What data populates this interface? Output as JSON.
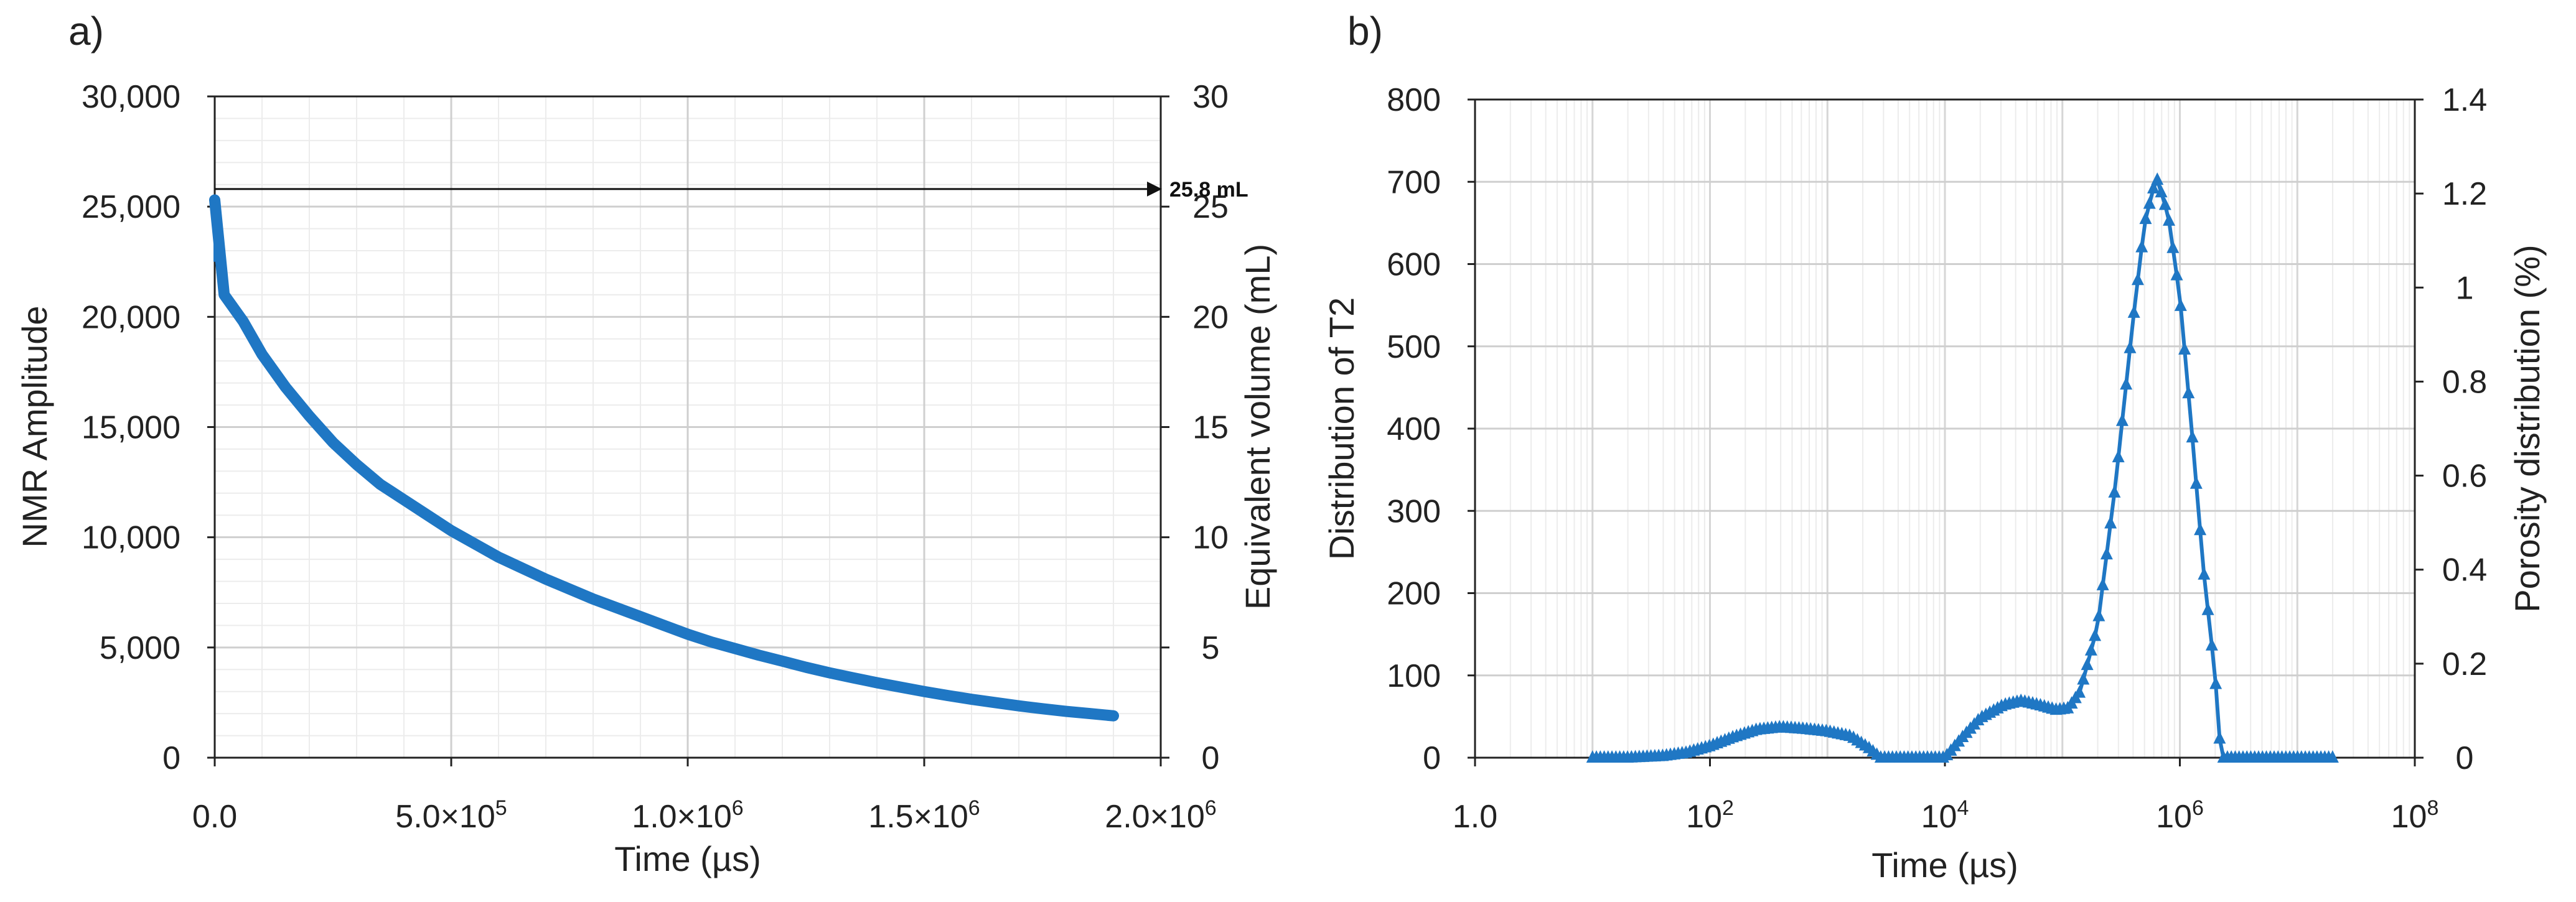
{
  "chart_data": [
    {
      "panel": "a)",
      "type": "line",
      "title": "",
      "xlabel": "Time (µs)",
      "ylabel": "NMR Amplitude",
      "y2label": "Equivalent volume (mL)",
      "xlim": [
        0,
        2000000
      ],
      "ylim": [
        0,
        30000
      ],
      "y2lim": [
        0,
        30
      ],
      "x_ticks": [
        {
          "value": 0,
          "base": "0.0",
          "exp": ""
        },
        {
          "value": 500000,
          "base": "5.0×10",
          "exp": "5"
        },
        {
          "value": 1000000,
          "base": "1.0×10",
          "exp": "6"
        },
        {
          "value": 1500000,
          "base": "1.5×10",
          "exp": "6"
        },
        {
          "value": 2000000,
          "base": "2.0×10",
          "exp": "6"
        }
      ],
      "y_ticks": [
        {
          "value": 0,
          "label": "0"
        },
        {
          "value": 5000,
          "label": "5,000"
        },
        {
          "value": 10000,
          "label": "10,000"
        },
        {
          "value": 15000,
          "label": "15,000"
        },
        {
          "value": 20000,
          "label": "20,000"
        },
        {
          "value": 25000,
          "label": "25,000"
        },
        {
          "value": 30000,
          "label": "30,000"
        }
      ],
      "y2_ticks": [
        {
          "value": 0,
          "label": "0"
        },
        {
          "value": 5,
          "label": "5"
        },
        {
          "value": 10,
          "label": "10"
        },
        {
          "value": 15,
          "label": "15"
        },
        {
          "value": 20,
          "label": "20"
        },
        {
          "value": 25,
          "label": "25"
        },
        {
          "value": 30,
          "label": "30"
        }
      ],
      "annotation": {
        "label": "25.8 mL",
        "y_value": 25800
      },
      "series": [
        {
          "name": "NMR Amplitude",
          "color": "#1f77c4",
          "points": [
            [
              0,
              25300
            ],
            [
              20000,
              21000
            ],
            [
              60000,
              19800
            ],
            [
              100000,
              18300
            ],
            [
              150000,
              16800
            ],
            [
              200000,
              15500
            ],
            [
              250000,
              14300
            ],
            [
              300000,
              13300
            ],
            [
              350000,
              12400
            ],
            [
              400000,
              11700
            ],
            [
              450000,
              11000
            ],
            [
              500000,
              10300
            ],
            [
              550000,
              9700
            ],
            [
              600000,
              9100
            ],
            [
              650000,
              8600
            ],
            [
              700000,
              8100
            ],
            [
              750000,
              7650
            ],
            [
              800000,
              7200
            ],
            [
              850000,
              6800
            ],
            [
              900000,
              6400
            ],
            [
              950000,
              6000
            ],
            [
              1000000,
              5600
            ],
            [
              1050000,
              5250
            ],
            [
              1100000,
              4950
            ],
            [
              1150000,
              4650
            ],
            [
              1200000,
              4380
            ],
            [
              1250000,
              4100
            ],
            [
              1300000,
              3850
            ],
            [
              1350000,
              3620
            ],
            [
              1400000,
              3400
            ],
            [
              1450000,
              3200
            ],
            [
              1500000,
              3000
            ],
            [
              1550000,
              2820
            ],
            [
              1600000,
              2650
            ],
            [
              1650000,
              2500
            ],
            [
              1700000,
              2350
            ],
            [
              1750000,
              2220
            ],
            [
              1800000,
              2100
            ],
            [
              1850000,
              2000
            ],
            [
              1900000,
              1900
            ]
          ]
        }
      ]
    },
    {
      "panel": "b)",
      "type": "line",
      "x_scale": "log10",
      "title": "",
      "xlabel": "Time (µs)",
      "ylabel": "Distribution of T2",
      "y2label": "Porosity distribution (%)",
      "xlim": [
        1,
        100000000
      ],
      "ylim": [
        0,
        800
      ],
      "y2lim": [
        0,
        1.4
      ],
      "x_ticks": [
        {
          "value": 1,
          "base": "1.0",
          "exp": ""
        },
        {
          "value": 100,
          "base": "10",
          "exp": "2"
        },
        {
          "value": 10000,
          "base": "10",
          "exp": "4"
        },
        {
          "value": 1000000,
          "base": "10",
          "exp": "6"
        },
        {
          "value": 100000000,
          "base": "10",
          "exp": "8"
        }
      ],
      "y_ticks": [
        {
          "value": 0,
          "label": "0"
        },
        {
          "value": 100,
          "label": "100"
        },
        {
          "value": 200,
          "label": "200"
        },
        {
          "value": 300,
          "label": "300"
        },
        {
          "value": 400,
          "label": "400"
        },
        {
          "value": 500,
          "label": "500"
        },
        {
          "value": 600,
          "label": "600"
        },
        {
          "value": 700,
          "label": "700"
        },
        {
          "value": 800,
          "label": "800"
        }
      ],
      "y2_ticks": [
        {
          "value": 0,
          "label": "0"
        },
        {
          "value": 0.2,
          "label": "0.2"
        },
        {
          "value": 0.4,
          "label": "0.4"
        },
        {
          "value": 0.6,
          "label": "0.6"
        },
        {
          "value": 0.8,
          "label": "0.8"
        },
        {
          "value": 1.0,
          "label": "1"
        },
        {
          "value": 1.2,
          "label": "1.2"
        },
        {
          "value": 1.4,
          "label": "1.4"
        }
      ],
      "series": [
        {
          "name": "Distribution of T2",
          "color": "#1f77c4",
          "marker": "triangle",
          "log10_x_range": [
            1.0,
            7.3
          ],
          "points": [
            [
              1.0,
              0
            ],
            [
              1.3,
              0
            ],
            [
              1.6,
              2
            ],
            [
              1.8,
              6
            ],
            [
              2.0,
              14
            ],
            [
              2.2,
              25
            ],
            [
              2.4,
              34
            ],
            [
              2.6,
              37
            ],
            [
              2.8,
              35
            ],
            [
              3.0,
              32
            ],
            [
              3.2,
              26
            ],
            [
              3.35,
              12
            ],
            [
              3.45,
              0
            ],
            [
              3.7,
              0
            ],
            [
              4.0,
              0
            ],
            [
              4.15,
              25
            ],
            [
              4.3,
              48
            ],
            [
              4.5,
              64
            ],
            [
              4.65,
              69
            ],
            [
              4.8,
              64
            ],
            [
              4.95,
              58
            ],
            [
              5.05,
              60
            ],
            [
              5.15,
              80
            ],
            [
              5.3,
              160
            ],
            [
              5.45,
              330
            ],
            [
              5.6,
              530
            ],
            [
              5.7,
              650
            ],
            [
              5.8,
              706
            ],
            [
              5.9,
              660
            ],
            [
              6.0,
              560
            ],
            [
              6.1,
              400
            ],
            [
              6.2,
              230
            ],
            [
              6.3,
              100
            ],
            [
              6.35,
              0
            ],
            [
              6.6,
              0
            ],
            [
              7.0,
              0
            ],
            [
              7.3,
              0
            ]
          ]
        }
      ]
    }
  ]
}
